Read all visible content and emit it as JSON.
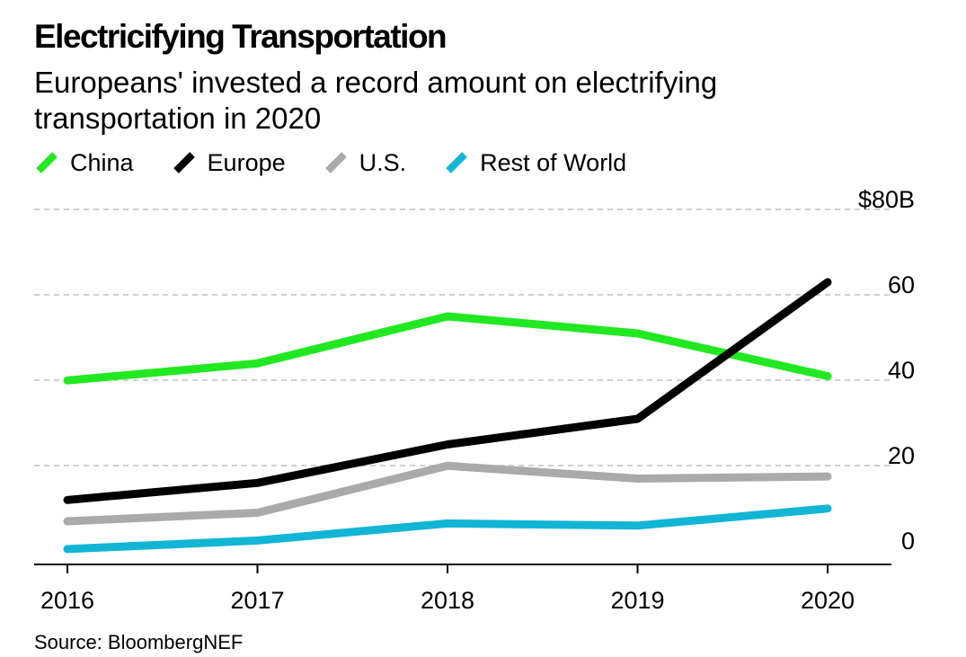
{
  "title": "Electricifying Transportation",
  "subtitle": "Europeans' invested a record amount on electrifying transportation in 2020",
  "source": "Source: BloombergNEF",
  "chart_data": {
    "type": "line",
    "title": "Electricifying Transportation",
    "subtitle": "Europeans' invested a record amount on electrifying transportation in 2020",
    "x": [
      "2016",
      "2017",
      "2018",
      "2019",
      "2020"
    ],
    "series": [
      {
        "name": "China",
        "color": "#22e822",
        "values": [
          41,
          45,
          56,
          52,
          42
        ]
      },
      {
        "name": "Europe",
        "color": "#000000",
        "values": [
          13,
          17,
          26,
          32,
          64
        ]
      },
      {
        "name": "U.S.",
        "color": "#aaaaaa",
        "values": [
          8,
          10,
          21,
          18,
          18.5
        ]
      },
      {
        "name": "Rest of World",
        "color": "#12b5d4",
        "values": [
          1.5,
          3.5,
          7.5,
          7,
          11
        ]
      }
    ],
    "y_ticks": [
      {
        "value": 0,
        "label": "0"
      },
      {
        "value": 20,
        "label": "20"
      },
      {
        "value": 40,
        "label": "40"
      },
      {
        "value": 60,
        "label": "60"
      },
      {
        "value": 80,
        "label": "$80B"
      }
    ],
    "ylim": [
      -2,
      80
    ],
    "grid": true,
    "legend_position": "top-left",
    "y_axis_side": "right"
  }
}
